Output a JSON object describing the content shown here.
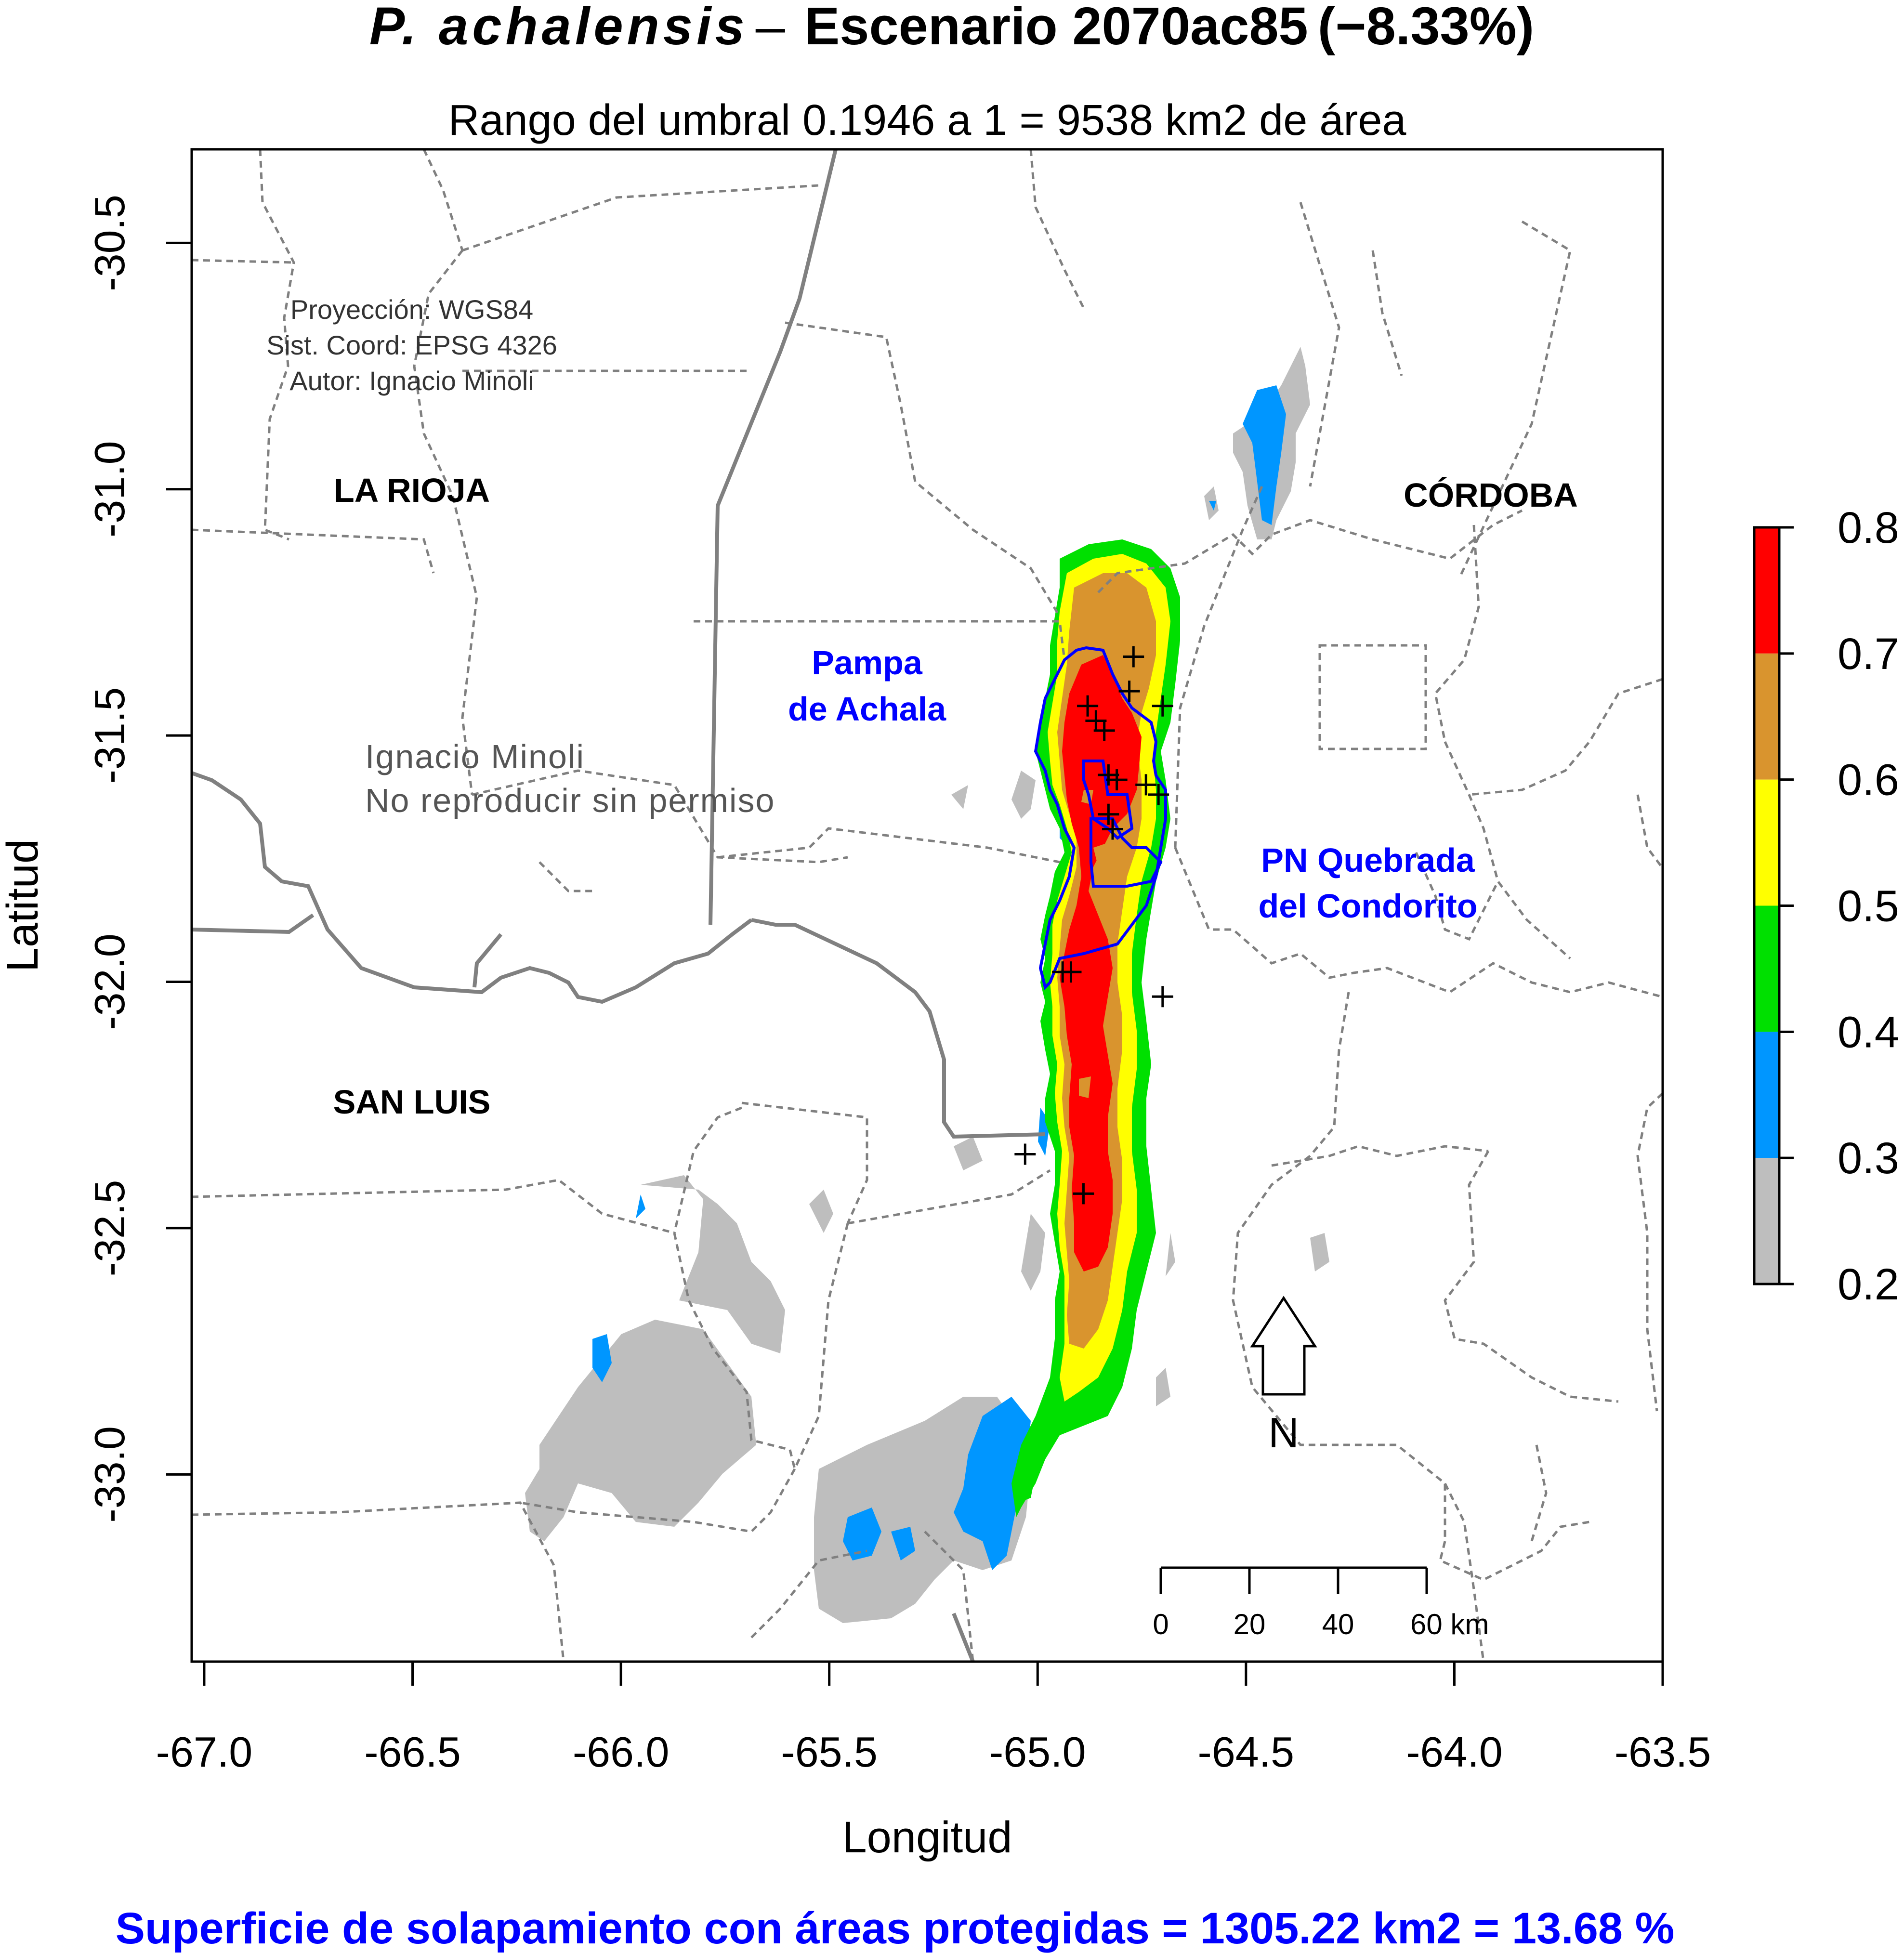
{
  "title": {
    "species": "P. achalensis",
    "dash": "–",
    "scenario": "Escenario 2070ac85",
    "change": "(−8.33%)"
  },
  "subtitle": "Rango del umbral 0.1946 a 1 = 9538 km2 de área",
  "credits": [
    "Proyección: WGS84",
    "Sist. Coord: EPSG 4326",
    "Autor: Ignacio Minoli"
  ],
  "watermark": [
    "Ignacio Minoli",
    "No reproducir sin permiso"
  ],
  "provinces": {
    "la_rioja": "LA RIOJA",
    "cordoba": "CÓRDOBA",
    "san_luis": "SAN LUIS"
  },
  "protected_areas": {
    "pampa_achala": [
      "Pampa",
      "de Achala"
    ],
    "quebrada_condorito": [
      "PN Quebrada",
      "del Condorito"
    ]
  },
  "axes": {
    "xlabel": "Longitud",
    "ylabel": "Latitud",
    "x_ticks": [
      "-67.0",
      "-66.5",
      "-66.0",
      "-65.5",
      "-65.0",
      "-64.5",
      "-64.0",
      "-63.5"
    ],
    "y_ticks": [
      "-30.5",
      "-31.0",
      "-31.5",
      "-32.0",
      "-32.5",
      "-33.0"
    ],
    "x_range": [
      -67.03,
      -63.5
    ],
    "y_range": [
      -33.38,
      -30.31
    ]
  },
  "legend": {
    "ticks": [
      "0.8",
      "0.7",
      "0.6",
      "0.5",
      "0.4",
      "0.3",
      "0.2"
    ],
    "classes": [
      {
        "from": 0.7,
        "to": 0.8,
        "color": "#ff0000"
      },
      {
        "from": 0.6,
        "to": 0.7,
        "color": "#d9942e"
      },
      {
        "from": 0.5,
        "to": 0.6,
        "color": "#ffff00"
      },
      {
        "from": 0.4,
        "to": 0.5,
        "color": "#00e000"
      },
      {
        "from": 0.3,
        "to": 0.4,
        "color": "#0096ff"
      },
      {
        "from": 0.2,
        "to": 0.3,
        "color": "#bebebe"
      }
    ]
  },
  "north_arrow": "N",
  "scale_bar": {
    "ticks": [
      "0",
      "20",
      "40",
      "60 km"
    ]
  },
  "footer": "Superficie de solapamiento con áreas protegidas = 1305.22 km2 =  13.68 %",
  "colors": {
    "accent_blue": "#0000ff",
    "province_border": "#808080",
    "department_border": "#808080",
    "gray_text": "#555555"
  },
  "occurrences": [
    [
      -64.77,
      -31.34
    ],
    [
      -64.78,
      -31.41
    ],
    [
      -64.7,
      -31.44
    ],
    [
      -64.88,
      -31.44
    ],
    [
      -64.86,
      -31.47
    ],
    [
      -64.84,
      -31.49
    ],
    [
      -64.83,
      -31.58
    ],
    [
      -64.81,
      -31.59
    ],
    [
      -64.74,
      -31.6
    ],
    [
      -64.71,
      -31.62
    ],
    [
      -64.83,
      -31.66
    ],
    [
      -64.82,
      -31.69
    ],
    [
      -64.94,
      -31.98
    ],
    [
      -64.92,
      -31.98
    ],
    [
      -64.7,
      -32.03
    ],
    [
      -65.03,
      -32.35
    ],
    [
      -64.89,
      -32.43
    ]
  ]
}
